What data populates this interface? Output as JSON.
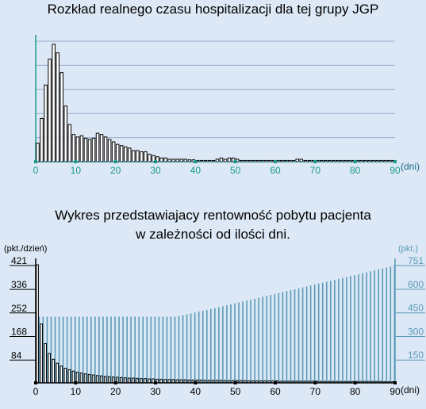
{
  "chart_data": [
    {
      "type": "bar",
      "title": "Rozkład realnego czasu hospitalizacji dla tej grupy JGP",
      "xlabel": "(dni)",
      "xlim": [
        0,
        90
      ],
      "x_ticks": [
        0,
        10,
        20,
        30,
        40,
        50,
        60,
        70,
        80,
        90
      ],
      "ylim": [
        0,
        100
      ],
      "grid": true,
      "colors": {
        "axis": "#1a9a8a",
        "baseline": "#2a8aa0",
        "bar_fill": "#ffffff",
        "bar_stroke": "#000000",
        "grid": "#99aacc"
      },
      "x": [
        1,
        2,
        3,
        4,
        5,
        6,
        7,
        8,
        9,
        10,
        11,
        12,
        13,
        14,
        15,
        16,
        17,
        18,
        19,
        20,
        21,
        22,
        23,
        24,
        25,
        26,
        27,
        28,
        29,
        30,
        31,
        32,
        33,
        34,
        35,
        36,
        37,
        38,
        39,
        40,
        41,
        42,
        43,
        44,
        45,
        46,
        47,
        48,
        49,
        50,
        51,
        52,
        53,
        54,
        55,
        56,
        57,
        58,
        59,
        60,
        61,
        62,
        63,
        64,
        65,
        66,
        67,
        68,
        69,
        70,
        71,
        72,
        73,
        74,
        75,
        76,
        77,
        78,
        79,
        80,
        81,
        82,
        83,
        84,
        85,
        86,
        87,
        88,
        89,
        90
      ],
      "values": [
        15,
        35,
        62,
        83,
        95,
        88,
        72,
        45,
        30,
        22,
        20,
        21,
        19,
        18,
        19,
        23,
        22,
        20,
        18,
        16,
        14,
        13,
        12,
        11,
        9,
        9,
        8,
        8,
        6,
        5,
        4,
        3,
        3,
        2,
        2,
        2,
        2,
        2,
        1.5,
        1.5,
        1,
        1,
        1,
        1,
        1,
        2,
        3,
        2,
        3,
        3,
        2,
        1,
        1,
        1,
        1,
        1,
        1,
        1,
        1,
        1,
        1,
        1,
        1,
        1,
        1,
        2,
        2,
        1,
        1,
        1,
        1,
        1,
        1,
        1,
        1,
        1,
        1,
        1,
        1,
        1,
        1,
        1,
        1,
        1,
        1,
        1,
        1,
        1,
        1,
        1
      ]
    },
    {
      "type": "bar",
      "title_line1": "Wykres przedstawiajacy rentowność pobytu pacjenta",
      "title_line2": "w zależności od ilości dni.",
      "xlabel": "(dni)",
      "ylabel_left": "(pkt./dzień)",
      "ylabel_right": "(pkt.)",
      "xlim": [
        0,
        90
      ],
      "x_ticks": [
        0,
        10,
        20,
        30,
        40,
        50,
        60,
        70,
        80,
        90
      ],
      "y_left_ticks": [
        84,
        168,
        252,
        336,
        421
      ],
      "y_left_lim": [
        0,
        421
      ],
      "y_right_ticks": [
        150,
        300,
        450,
        600,
        751
      ],
      "y_right_lim": [
        0,
        751
      ],
      "colors": {
        "axis_left": "#000000",
        "axis_right": "#5a9ab8",
        "per_day_bar": "#000000",
        "total_bar": "#5a9ab8"
      },
      "series": [
        {
          "name": "per_day",
          "axis": "left",
          "values": [
            421,
            210,
            140,
            105,
            84,
            70,
            60,
            52,
            47,
            42,
            38,
            35,
            32,
            30,
            28,
            26,
            25,
            23,
            22,
            21,
            20,
            19,
            18,
            17,
            17,
            16,
            15,
            15,
            14,
            14,
            13,
            13,
            12,
            12,
            12,
            11,
            11,
            11,
            10,
            10,
            10,
            10,
            9,
            9,
            9,
            9,
            9,
            8,
            8,
            8,
            8,
            8,
            8,
            7,
            7,
            7,
            7,
            7,
            7,
            7,
            7,
            6,
            6,
            6,
            6,
            6,
            6,
            6,
            6,
            6,
            6,
            5,
            5,
            5,
            5,
            5,
            5,
            5,
            5,
            5,
            5,
            5,
            5,
            5,
            5,
            5,
            5,
            4,
            4,
            4
          ]
        },
        {
          "name": "total",
          "axis": "right",
          "values": [
            421,
            421,
            421,
            421,
            421,
            421,
            421,
            421,
            421,
            421,
            421,
            421,
            421,
            421,
            421,
            421,
            421,
            421,
            421,
            421,
            421,
            421,
            421,
            421,
            421,
            421,
            421,
            421,
            421,
            421,
            421,
            421,
            421,
            421,
            421,
            425,
            430,
            436,
            441,
            447,
            453,
            458,
            464,
            470,
            475,
            481,
            487,
            493,
            499,
            505,
            511,
            517,
            523,
            529,
            535,
            541,
            547,
            553,
            559,
            565,
            571,
            577,
            583,
            589,
            595,
            601,
            607,
            613,
            619,
            625,
            631,
            637,
            643,
            649,
            655,
            661,
            667,
            673,
            679,
            685,
            691,
            697,
            703,
            709,
            715,
            721,
            727,
            733,
            739,
            751
          ]
        }
      ]
    }
  ]
}
